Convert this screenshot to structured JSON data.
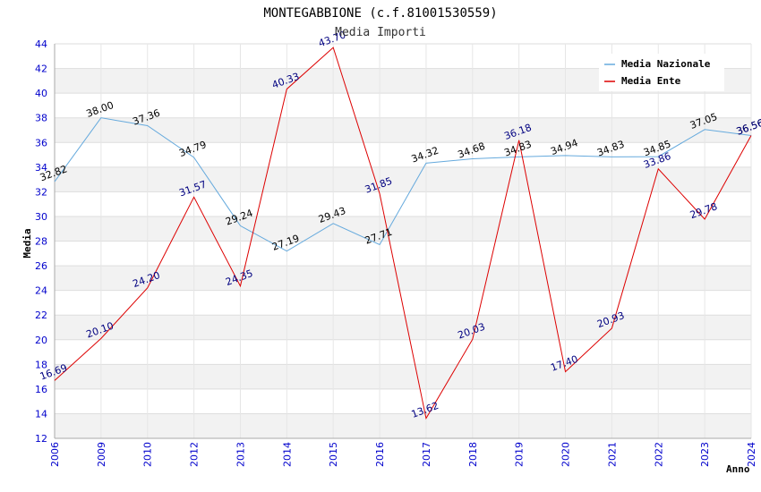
{
  "chart_data": {
    "type": "line",
    "title": "MONTEGABBIONE (c.f.81001530559)",
    "subtitle": "Media Importi",
    "xlabel": "Anno",
    "ylabel": "Media",
    "ylim": [
      12,
      44
    ],
    "yticks": [
      "12",
      "14",
      "16",
      "18",
      "20",
      "22",
      "24",
      "26",
      "28",
      "30",
      "32",
      "34",
      "36",
      "38",
      "40",
      "42",
      "44"
    ],
    "categories": [
      "2006",
      "2009",
      "2010",
      "2012",
      "2013",
      "2014",
      "2015",
      "2016",
      "2017",
      "2018",
      "2019",
      "2020",
      "2021",
      "2022",
      "2023",
      "2024"
    ],
    "series": [
      {
        "name": "Media Nazionale",
        "color": "#66aadd",
        "label_color": "#000000",
        "values": [
          32.82,
          38.0,
          37.36,
          34.79,
          29.24,
          27.19,
          29.43,
          27.71,
          34.32,
          34.68,
          34.83,
          34.94,
          34.83,
          34.85,
          37.05,
          36.56
        ],
        "labels": [
          "32.82",
          "38.00",
          "37.36",
          "34.79",
          "29.24",
          "27.19",
          "29.43",
          "27.71",
          "34.32",
          "34.68",
          "34.83",
          "34.94",
          "34.83",
          "34.85",
          "37.05",
          "36.56"
        ]
      },
      {
        "name": "Media Ente",
        "color": "#dd0000",
        "label_color": "#000080",
        "values": [
          16.69,
          20.1,
          24.2,
          31.57,
          24.35,
          40.33,
          43.7,
          31.85,
          13.62,
          20.03,
          36.18,
          17.4,
          20.93,
          33.86,
          29.78,
          36.56
        ],
        "labels": [
          "16.69",
          "20.10",
          "24.20",
          "31.57",
          "24.35",
          "40.33",
          "43.70",
          "31.85",
          "13.62",
          "20.03",
          "36.18",
          "17.40",
          "20.93",
          "33.86",
          "29.78",
          "36.56"
        ]
      }
    ],
    "grid": true,
    "legend_position": "top-right"
  }
}
